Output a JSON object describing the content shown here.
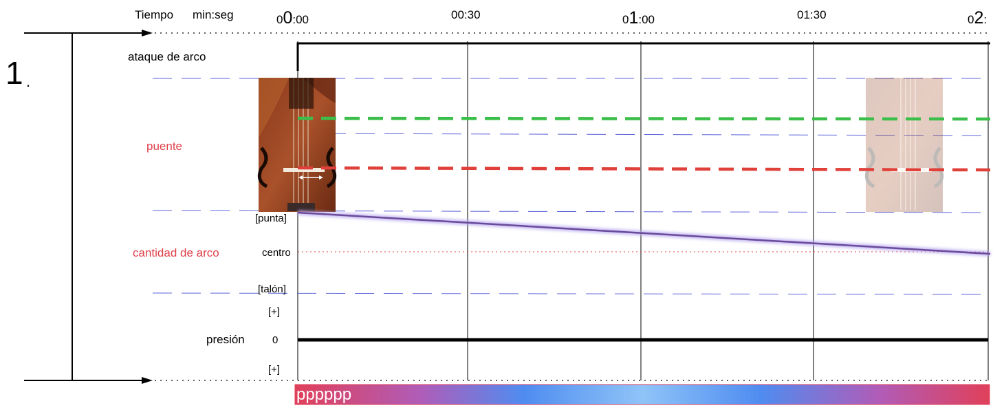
{
  "system_number": "1",
  "system_number_dot": ".",
  "time_header": {
    "label": "Tiempo",
    "unit": "min:seg",
    "marks": [
      {
        "pre": "0",
        "big": "0",
        "post": ":00"
      },
      {
        "pre": "",
        "big": "",
        "post": "00:30"
      },
      {
        "pre": "0",
        "big": "1",
        "post": ":00"
      },
      {
        "pre": "",
        "big": "",
        "post": "01:30"
      },
      {
        "pre": "0",
        "big": "2",
        "post": ":"
      }
    ]
  },
  "rows": {
    "attack": "ataque de arco",
    "bridge": "puente",
    "bow_amount": "cantidad de arco",
    "pressure": "presión"
  },
  "bow_scale": {
    "tip": "[punta]",
    "middle": "centro",
    "frog": "[talón]"
  },
  "pressure_scale": {
    "plus_top": "[+]",
    "zero": "0",
    "plus_bottom": "[+]"
  },
  "dynamics": "pppppp",
  "colors": {
    "bridge_green": "#3cbf4a",
    "bridge_red": "#e0403a",
    "label_red": "#e0404a",
    "staff_blue": "#5b62d8",
    "bow_line": "#6a4a9a",
    "gradient": [
      "#e0405a",
      "#b05cb8",
      "#4f8cf0",
      "#8fc4f8",
      "#4f8cf0",
      "#b05cb8",
      "#e0405a"
    ]
  },
  "icons": {
    "violin": "violin-bridge-photo",
    "arrow": "arrow-right-icon"
  }
}
